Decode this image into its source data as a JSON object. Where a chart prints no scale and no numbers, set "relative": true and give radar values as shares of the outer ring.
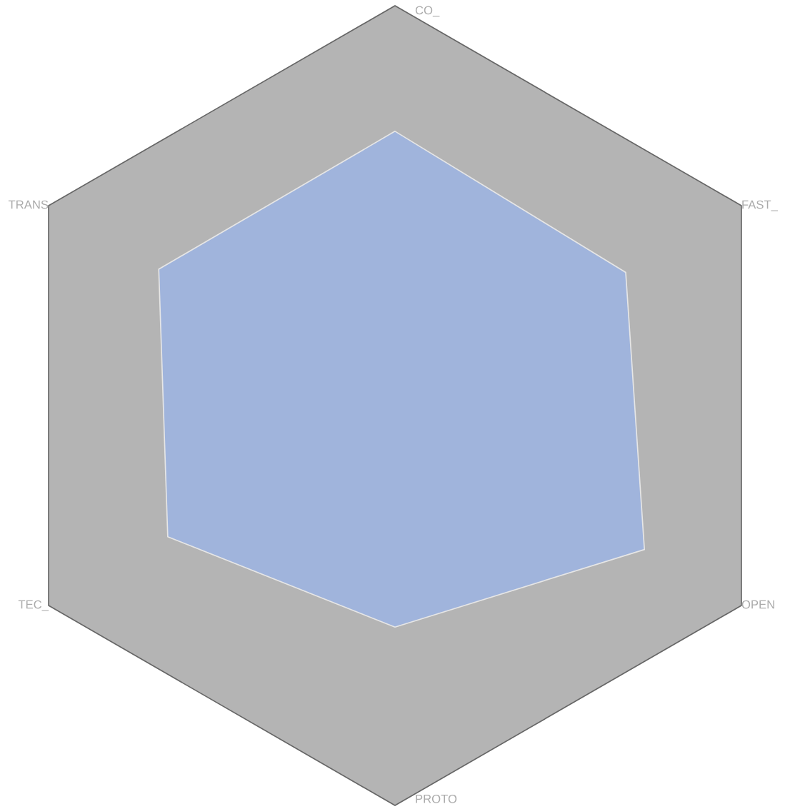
{
  "chart_data": {
    "type": "radar",
    "relative": true,
    "categories": [
      "CO_",
      "FAST_",
      "OPEN",
      "PROTO",
      "TEC_",
      "TRANS"
    ],
    "series": [
      {
        "color": "#a0b4dc",
        "values": [
          0.686,
          0.666,
          0.72,
          0.554,
          0.656,
          0.682
        ]
      }
    ]
  }
}
